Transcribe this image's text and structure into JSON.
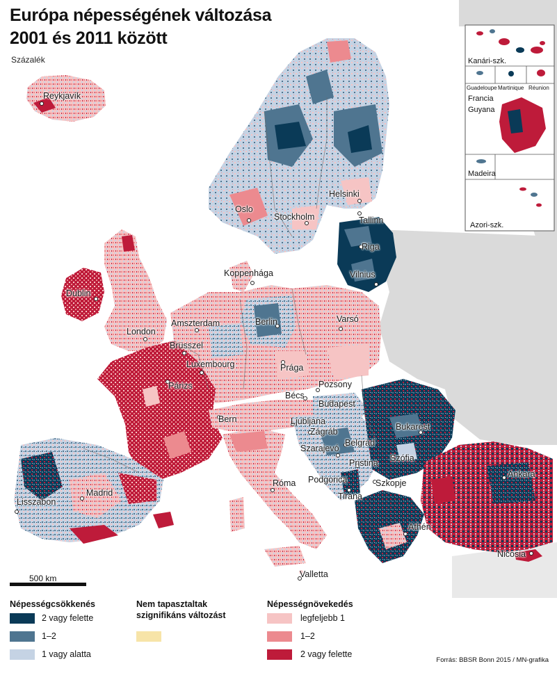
{
  "title_line1": "Európa népességének változása",
  "title_line2": "2001 és 2011 között",
  "unit": "Százalék",
  "colors": {
    "dec_strong": "#0a3a57",
    "dec_mid": "#4f7590",
    "dec_weak": "#c5d3e4",
    "nochange": "#f7e4a8",
    "inc_weak": "#f6c4c4",
    "inc_mid": "#ec8a8f",
    "inc_strong": "#be1b3a",
    "nonstudy": "#dadada",
    "sea": "#ffffff"
  },
  "cities": [
    {
      "name": "Reykjavík"
    },
    {
      "name": "Oslo"
    },
    {
      "name": "Stockholm"
    },
    {
      "name": "Helsinki"
    },
    {
      "name": "Tallinn"
    },
    {
      "name": "Riga"
    },
    {
      "name": "Vilnius"
    },
    {
      "name": "Koppenhága"
    },
    {
      "name": "Dublin"
    },
    {
      "name": "London"
    },
    {
      "name": "Amszterdam"
    },
    {
      "name": "Berlin"
    },
    {
      "name": "Varsó"
    },
    {
      "name": "Brüsszel"
    },
    {
      "name": "Luxembourg"
    },
    {
      "name": "Prága"
    },
    {
      "name": "Párizs"
    },
    {
      "name": "Pozsony"
    },
    {
      "name": "Bécs"
    },
    {
      "name": "Budapest"
    },
    {
      "name": "Bern"
    },
    {
      "name": "Ljubljana"
    },
    {
      "name": "Zágráb"
    },
    {
      "name": "Bukarest"
    },
    {
      "name": "Belgrád"
    },
    {
      "name": "Szarajevó"
    },
    {
      "name": "Pristina"
    },
    {
      "name": "Szófia"
    },
    {
      "name": "Podgorica"
    },
    {
      "name": "Szkopje"
    },
    {
      "name": "Tirana"
    },
    {
      "name": "Ankara"
    },
    {
      "name": "Róma"
    },
    {
      "name": "Madrid"
    },
    {
      "name": "Lisszabon"
    },
    {
      "name": "Athén"
    },
    {
      "name": "Nicosia"
    },
    {
      "name": "Valletta"
    }
  ],
  "insets": {
    "canary": "Kanári-szk.",
    "guadeloupe": "Guadeloupe",
    "martinique": "Martinique",
    "reunion": "Réunion",
    "guyana_line1": "Francia",
    "guyana_line2": "Guyana",
    "madeira": "Madeira",
    "azores": "Azori-szk."
  },
  "scale": "500 km",
  "legend": {
    "decrease_title": "Népességcsökkenés",
    "decrease_items": [
      "2 vagy felette",
      "1–2",
      "1 vagy alatta"
    ],
    "nochange_title_line1": "Nem tapasztaltak",
    "nochange_title_line2": "szignifikáns változást",
    "increase_title": "Népességnövekedés",
    "increase_items": [
      "legfeljebb 1",
      "1–2",
      "2 vagy felette"
    ]
  },
  "source": "Forrás: BBSR Bonn 2015 / MN-grafika"
}
